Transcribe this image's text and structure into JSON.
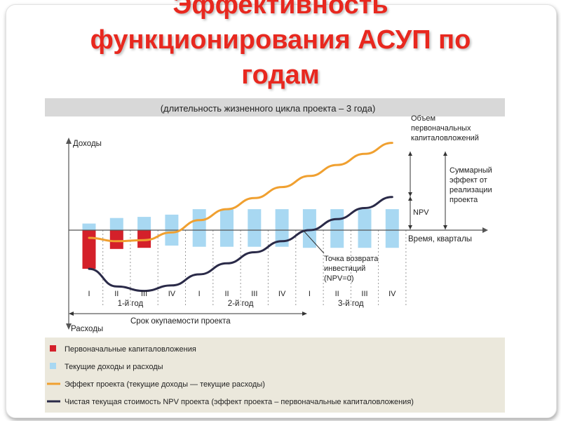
{
  "slide": {
    "title_lines": [
      "Эффективность",
      "функционирования АСУП по",
      "годам"
    ]
  },
  "chart_data": {
    "type": "line",
    "subtitle": "(длительность жизненного цикла проекта – 3 года)",
    "ylabel_top": "Доходы",
    "ylabel_bottom": "Расходы",
    "xlabel": "Время, кварталы",
    "quarters": [
      "I",
      "II",
      "III",
      "IV",
      "I",
      "II",
      "III",
      "IV",
      "I",
      "II",
      "III",
      "IV"
    ],
    "years": [
      "1-й год",
      "2-й год",
      "3-й год"
    ],
    "initial_investment": [
      -1.75,
      -0.85,
      -0.8,
      0,
      0,
      0,
      0,
      0,
      0,
      0,
      0,
      0
    ],
    "current_cashflow": [
      [
        -0.45,
        0.3
      ],
      [
        -0.6,
        0.55
      ],
      [
        -0.65,
        0.6
      ],
      [
        -0.7,
        0.7
      ],
      [
        -0.75,
        0.95
      ],
      [
        -0.75,
        0.95
      ],
      [
        -0.75,
        0.95
      ],
      [
        -0.75,
        0.95
      ],
      [
        -0.8,
        0.95
      ],
      [
        -0.8,
        0.95
      ],
      [
        -0.8,
        0.95
      ],
      [
        -0.8,
        0.95
      ]
    ],
    "series": [
      {
        "key": "effect",
        "color": "#f0a030",
        "values": [
          -0.35,
          -0.5,
          -0.45,
          -0.1,
          0.45,
          0.95,
          1.45,
          1.95,
          2.45,
          2.95,
          3.45,
          3.95
        ]
      },
      {
        "key": "npv",
        "color": "#2a2a48",
        "values": [
          -1.75,
          -2.55,
          -2.75,
          -2.5,
          -2.0,
          -1.5,
          -1.0,
          -0.5,
          0.0,
          0.5,
          1.0,
          1.5
        ]
      }
    ],
    "annotations": {
      "initial_volume": "Объем первоначальных капиталовложений",
      "total_effect": "Суммарный эффект от реализации проекта",
      "npv": "NPV",
      "return_point": "Точка возврата инвестиций (NPV=0)",
      "payback": "Срок окупаемости проекта"
    },
    "legend": [
      {
        "label": "Первоначальные капиталовложения",
        "color": "#d4202a",
        "marker": "square"
      },
      {
        "label": "Текущие доходы и расходы",
        "color": "#a8d8f2",
        "marker": "square"
      },
      {
        "label": "Эффект проекта (текущие доходы — текущие расходы)",
        "color": "#f0a030",
        "marker": "line"
      },
      {
        "label": "Чистая текущая стоимость NPV проекта (эффект проекта – первоначальные капиталовложения)",
        "color": "#2a2a48",
        "marker": "line"
      }
    ],
    "colors": {
      "subtitle_bg": "#d8d8d8",
      "legend_bg": "#ebe8dc",
      "bar_current": "#a8d8f2",
      "bar_initial": "#d4202a"
    }
  }
}
